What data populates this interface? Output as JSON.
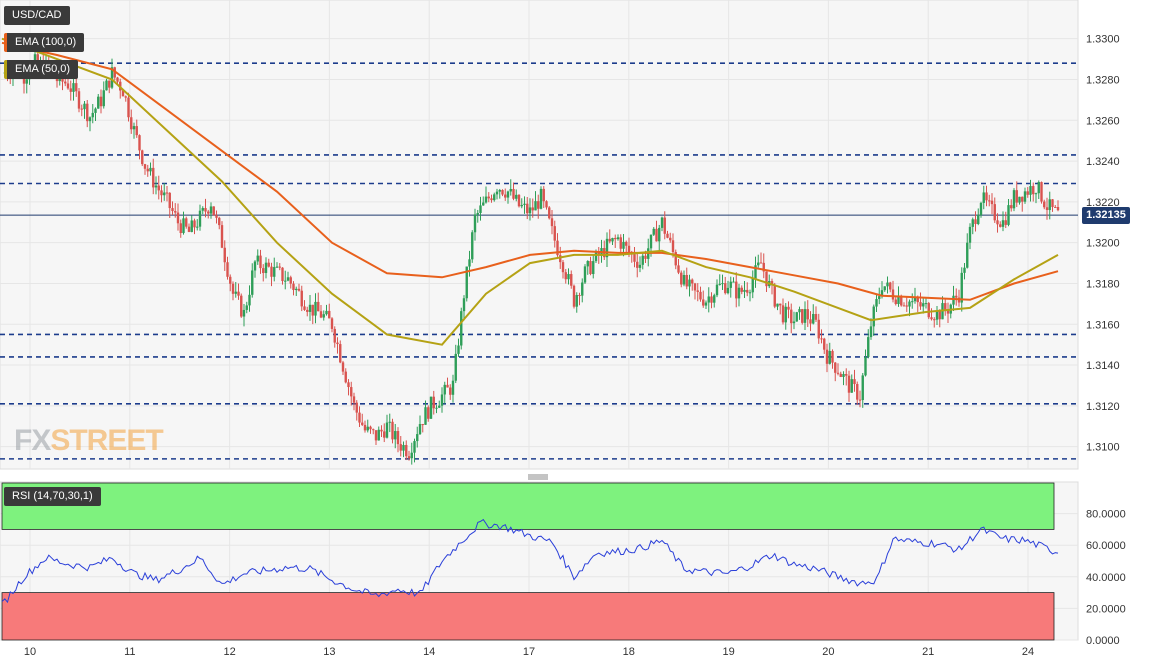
{
  "symbol": "USD/CAD",
  "indicators": {
    "ema100": "EMA (100,0)",
    "ema50": "EMA (50,0)",
    "rsi": "RSI (14,70,30,1)"
  },
  "watermark": {
    "part1": "FX",
    "part2": "STREET"
  },
  "current_price": "1.32135",
  "colors": {
    "up": "#2e9e58",
    "down": "#d9534f",
    "ema100": "#e8601c",
    "ema50": "#b5a214",
    "level": "#1c3c8c",
    "rsi_line": "#2a3fd9",
    "rsi_overbought": "#7ef27e",
    "rsi_oversold": "#f77a7a"
  },
  "chart_data": [
    {
      "type": "candlestick",
      "title": "USD/CAD",
      "ylim": [
        1.3091,
        1.3317
      ],
      "y_ticks": [
        "1.3300",
        "1.3280",
        "1.3260",
        "1.3240",
        "1.3220",
        "1.3200",
        "1.3180",
        "1.3160",
        "1.3140",
        "1.3120",
        "1.3100"
      ],
      "x_ticks": [
        "10",
        "11",
        "12",
        "13",
        "14",
        "17",
        "18",
        "19",
        "20",
        "21",
        "24"
      ],
      "horizontal_levels": [
        1.3288,
        1.3243,
        1.3229,
        1.3155,
        1.3144,
        1.3121,
        1.3094
      ],
      "last_price_line": 1.32135,
      "series": [
        {
          "name": "USD/CAD",
          "close_path": [
            [
              0,
              1.3283
            ],
            [
              4,
              1.3285
            ],
            [
              8,
              1.3282
            ],
            [
              12,
              1.3288
            ],
            [
              16,
              1.3286
            ],
            [
              20,
              1.328
            ],
            [
              24,
              1.3278
            ],
            [
              28,
              1.327
            ],
            [
              32,
              1.3262
            ],
            [
              36,
              1.327
            ],
            [
              40,
              1.3283
            ],
            [
              44,
              1.3275
            ],
            [
              48,
              1.3255
            ],
            [
              52,
              1.3238
            ],
            [
              56,
              1.3228
            ],
            [
              60,
              1.322
            ],
            [
              64,
              1.321
            ],
            [
              68,
              1.3205
            ],
            [
              72,
              1.3212
            ],
            [
              76,
              1.322
            ],
            [
              80,
              1.32
            ],
            [
              84,
              1.3175
            ],
            [
              88,
              1.3165
            ],
            [
              92,
              1.319
            ],
            [
              96,
              1.3188
            ],
            [
              100,
              1.3185
            ],
            [
              104,
              1.3182
            ],
            [
              108,
              1.3175
            ],
            [
              112,
              1.3168
            ],
            [
              116,
              1.3165
            ],
            [
              120,
              1.316
            ],
            [
              124,
              1.314
            ],
            [
              128,
              1.312
            ],
            [
              132,
              1.3108
            ],
            [
              136,
              1.3105
            ],
            [
              140,
              1.311
            ],
            [
              144,
              1.3102
            ],
            [
              148,
              1.3098
            ],
            [
              152,
              1.3112
            ],
            [
              156,
              1.312
            ],
            [
              160,
              1.3125
            ],
            [
              164,
              1.313
            ],
            [
              168,
              1.3175
            ],
            [
              172,
              1.3212
            ],
            [
              176,
              1.322
            ],
            [
              180,
              1.3228
            ],
            [
              184,
              1.3225
            ],
            [
              188,
              1.3218
            ],
            [
              192,
              1.3215
            ],
            [
              196,
              1.3222
            ],
            [
              200,
              1.3205
            ],
            [
              204,
              1.319
            ],
            [
              208,
              1.3172
            ],
            [
              212,
              1.3185
            ],
            [
              216,
              1.3192
            ],
            [
              220,
              1.3198
            ],
            [
              224,
              1.3202
            ],
            [
              228,
              1.3195
            ],
            [
              232,
              1.319
            ],
            [
              236,
              1.32
            ],
            [
              240,
              1.321
            ],
            [
              244,
              1.3195
            ],
            [
              248,
              1.318
            ],
            [
              252,
              1.3175
            ],
            [
              256,
              1.3172
            ],
            [
              260,
              1.3178
            ],
            [
              264,
              1.318
            ],
            [
              268,
              1.3175
            ],
            [
              272,
              1.318
            ],
            [
              276,
              1.319
            ],
            [
              280,
              1.3175
            ],
            [
              284,
              1.3165
            ],
            [
              288,
              1.3162
            ],
            [
              292,
              1.3165
            ],
            [
              296,
              1.316
            ],
            [
              300,
              1.3145
            ],
            [
              304,
              1.3138
            ],
            [
              308,
              1.313
            ],
            [
              312,
              1.3125
            ],
            [
              316,
              1.316
            ],
            [
              320,
              1.318
            ],
            [
              324,
              1.3175
            ],
            [
              328,
              1.3172
            ],
            [
              332,
              1.317
            ],
            [
              336,
              1.3168
            ],
            [
              340,
              1.3165
            ],
            [
              344,
              1.3168
            ],
            [
              348,
              1.3175
            ],
            [
              352,
              1.3205
            ],
            [
              356,
              1.3222
            ],
            [
              360,
              1.3215
            ],
            [
              364,
              1.321
            ],
            [
              368,
              1.3222
            ],
            [
              372,
              1.3225
            ],
            [
              376,
              1.3228
            ],
            [
              380,
              1.3218
            ],
            [
              384,
              1.32135
            ]
          ]
        },
        {
          "name": "EMA (100,0)",
          "values": [
            [
              0,
              1.3298
            ],
            [
              20,
              1.3292
            ],
            [
              40,
              1.3285
            ],
            [
              60,
              1.3265
            ],
            [
              80,
              1.3245
            ],
            [
              100,
              1.3225
            ],
            [
              120,
              1.32
            ],
            [
              140,
              1.3185
            ],
            [
              160,
              1.3183
            ],
            [
              176,
              1.3188
            ],
            [
              192,
              1.3194
            ],
            [
              208,
              1.3196
            ],
            [
              224,
              1.3195
            ],
            [
              240,
              1.3195
            ],
            [
              256,
              1.3192
            ],
            [
              272,
              1.3188
            ],
            [
              288,
              1.3184
            ],
            [
              304,
              1.318
            ],
            [
              320,
              1.3174
            ],
            [
              336,
              1.3173
            ],
            [
              352,
              1.3172
            ],
            [
              368,
              1.318
            ],
            [
              384,
              1.3186
            ]
          ]
        },
        {
          "name": "EMA (50,0)",
          "values": [
            [
              0,
              1.33
            ],
            [
              20,
              1.329
            ],
            [
              40,
              1.328
            ],
            [
              60,
              1.3255
            ],
            [
              80,
              1.323
            ],
            [
              100,
              1.32
            ],
            [
              120,
              1.3175
            ],
            [
              140,
              1.3155
            ],
            [
              160,
              1.315
            ],
            [
              176,
              1.3175
            ],
            [
              192,
              1.319
            ],
            [
              208,
              1.3194
            ],
            [
              224,
              1.3194
            ],
            [
              240,
              1.3196
            ],
            [
              256,
              1.3188
            ],
            [
              272,
              1.3183
            ],
            [
              288,
              1.3176
            ],
            [
              304,
              1.3168
            ],
            [
              316,
              1.3162
            ],
            [
              336,
              1.3166
            ],
            [
              352,
              1.3168
            ],
            [
              368,
              1.3182
            ],
            [
              384,
              1.3194
            ]
          ]
        }
      ]
    },
    {
      "type": "line",
      "title": "RSI (14,70,30,1)",
      "ylim": [
        0,
        100
      ],
      "y_ticks": [
        "80.0000",
        "60.0000",
        "40.0000",
        "20.0000",
        "0.0000"
      ],
      "overbought": 70,
      "oversold": 30,
      "series": [
        {
          "name": "RSI (14,70,30,1)",
          "values": [
            [
              0,
              22
            ],
            [
              8,
              40
            ],
            [
              16,
              52
            ],
            [
              24,
              48
            ],
            [
              32,
              46
            ],
            [
              40,
              52
            ],
            [
              48,
              42
            ],
            [
              56,
              38
            ],
            [
              64,
              44
            ],
            [
              72,
              52
            ],
            [
              80,
              35
            ],
            [
              88,
              42
            ],
            [
              96,
              44
            ],
            [
              104,
              46
            ],
            [
              112,
              45
            ],
            [
              120,
              38
            ],
            [
              128,
              32
            ],
            [
              136,
              28
            ],
            [
              144,
              32
            ],
            [
              152,
              29
            ],
            [
              160,
              50
            ],
            [
              168,
              64
            ],
            [
              174,
              74
            ],
            [
              182,
              72
            ],
            [
              192,
              66
            ],
            [
              200,
              62
            ],
            [
              208,
              40
            ],
            [
              216,
              55
            ],
            [
              224,
              56
            ],
            [
              232,
              58
            ],
            [
              240,
              63
            ],
            [
              248,
              45
            ],
            [
              256,
              43
            ],
            [
              264,
              42
            ],
            [
              272,
              47
            ],
            [
              280,
              54
            ],
            [
              288,
              48
            ],
            [
              296,
              45
            ],
            [
              304,
              40
            ],
            [
              312,
              36
            ],
            [
              318,
              38
            ],
            [
              324,
              64
            ],
            [
              332,
              62
            ],
            [
              340,
              61
            ],
            [
              348,
              57
            ],
            [
              356,
              70
            ],
            [
              364,
              64
            ],
            [
              372,
              63
            ],
            [
              380,
              58
            ],
            [
              384,
              55
            ]
          ]
        }
      ]
    }
  ]
}
